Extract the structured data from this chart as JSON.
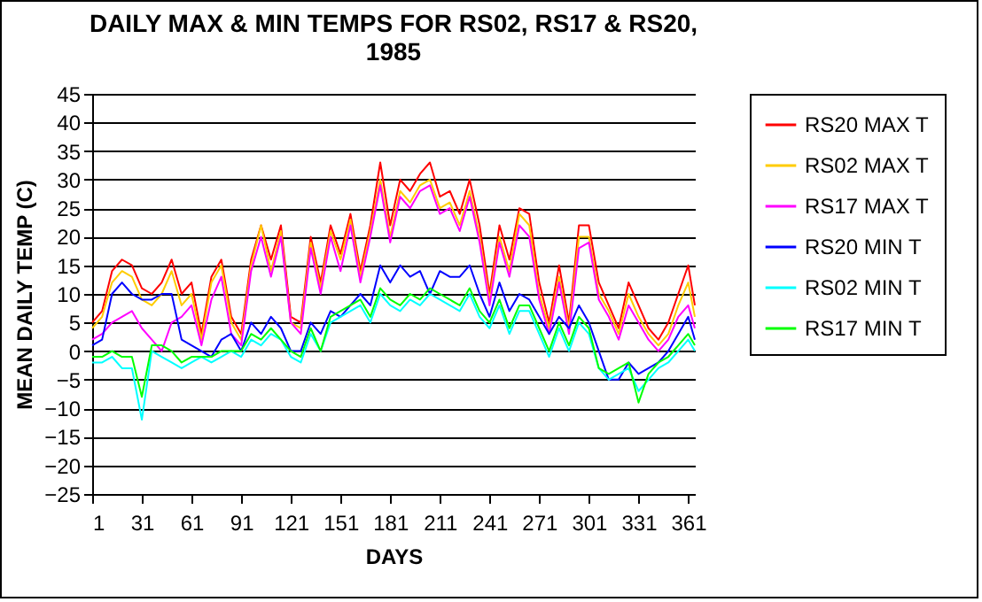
{
  "chart_data": {
    "type": "line",
    "title": "DAILY MAX & MIN TEMPS FOR RS02, RS17 & RS20,\n1985",
    "xlabel": "DAYS",
    "ylabel": "MEAN DAILY TEMP (C)",
    "x": [
      1,
      7,
      13,
      19,
      25,
      31,
      37,
      43,
      49,
      55,
      61,
      67,
      73,
      79,
      85,
      91,
      97,
      103,
      109,
      115,
      121,
      127,
      133,
      139,
      145,
      151,
      157,
      163,
      169,
      175,
      181,
      187,
      193,
      199,
      205,
      211,
      217,
      223,
      229,
      235,
      241,
      247,
      253,
      259,
      265,
      271,
      277,
      283,
      289,
      295,
      301,
      307,
      313,
      319,
      325,
      331,
      337,
      343,
      349,
      355,
      361,
      365
    ],
    "series": [
      {
        "name": "RS20 MAX T",
        "color": "#ff0000",
        "values": [
          5,
          7,
          14,
          16,
          15,
          11,
          10,
          12,
          16,
          10,
          12,
          3,
          13,
          16,
          6,
          3,
          16,
          22,
          16,
          22,
          6,
          5,
          20,
          12,
          22,
          17,
          24,
          14,
          22,
          33,
          22,
          30,
          28,
          31,
          33,
          27,
          28,
          24,
          30,
          22,
          10,
          22,
          16,
          25,
          24,
          12,
          5,
          15,
          5,
          22,
          22,
          12,
          8,
          4,
          12,
          8,
          4,
          2,
          5,
          10,
          15,
          8
        ]
      },
      {
        "name": "RS02 MAX T",
        "color": "#ffcc00",
        "values": [
          4,
          6,
          12,
          14,
          13,
          9,
          8,
          10,
          14,
          8,
          10,
          2,
          12,
          15,
          5,
          2,
          15,
          22,
          14,
          21,
          5,
          4,
          19,
          11,
          21,
          16,
          23,
          13,
          21,
          30,
          20,
          28,
          26,
          29,
          30,
          25,
          26,
          22,
          28,
          20,
          9,
          20,
          14,
          24,
          22,
          10,
          4,
          13,
          4,
          20,
          20,
          10,
          7,
          3,
          10,
          6,
          3,
          1,
          3,
          8,
          12,
          6
        ]
      },
      {
        "name": "RS17 MAX T",
        "color": "#ff00ff",
        "values": [
          2,
          3,
          5,
          6,
          7,
          4,
          2,
          0,
          5,
          6,
          8,
          1,
          9,
          13,
          3,
          1,
          14,
          20,
          13,
          20,
          5,
          3,
          18,
          10,
          20,
          14,
          22,
          12,
          20,
          29,
          19,
          27,
          25,
          28,
          29,
          24,
          25,
          21,
          27,
          19,
          8,
          19,
          13,
          22,
          20,
          9,
          3,
          12,
          3,
          18,
          19,
          9,
          6,
          2,
          8,
          5,
          2,
          0,
          2,
          6,
          8,
          4
        ]
      },
      {
        "name": "RS20 MIN T",
        "color": "#0000ff",
        "values": [
          1,
          2,
          10,
          12,
          10,
          9,
          9,
          10,
          10,
          2,
          1,
          0,
          -1,
          2,
          3,
          0,
          5,
          3,
          6,
          4,
          0,
          0,
          5,
          3,
          7,
          6,
          8,
          10,
          8,
          15,
          12,
          15,
          13,
          14,
          10,
          14,
          13,
          13,
          15,
          10,
          6,
          12,
          7,
          10,
          9,
          6,
          3,
          6,
          4,
          8,
          5,
          0,
          -5,
          -5,
          -2,
          -4,
          -3,
          -2,
          0,
          3,
          6,
          2
        ]
      },
      {
        "name": "RS02 MIN T",
        "color": "#00ffff",
        "values": [
          -2,
          -2,
          -1,
          -3,
          -3,
          -12,
          0,
          -1,
          -2,
          -3,
          -2,
          -1,
          -2,
          -1,
          0,
          -1,
          2,
          1,
          3,
          2,
          -1,
          -2,
          3,
          0,
          5,
          6,
          7,
          8,
          5,
          10,
          8,
          7,
          9,
          8,
          10,
          9,
          8,
          7,
          10,
          6,
          4,
          8,
          3,
          7,
          7,
          3,
          -1,
          4,
          0,
          5,
          3,
          -3,
          -5,
          -4,
          -3,
          -7,
          -5,
          -3,
          -2,
          0,
          2,
          0
        ]
      },
      {
        "name": "RS17 MIN T",
        "color": "#00ff00",
        "values": [
          -1,
          -1,
          0,
          -1,
          -1,
          -8,
          1,
          1,
          0,
          -2,
          -1,
          -1,
          -1,
          0,
          0,
          0,
          3,
          2,
          4,
          2,
          0,
          -1,
          4,
          0,
          6,
          7,
          8,
          9,
          6,
          11,
          9,
          8,
          10,
          9,
          11,
          10,
          9,
          8,
          11,
          7,
          5,
          9,
          4,
          8,
          8,
          4,
          0,
          5,
          1,
          6,
          4,
          -3,
          -4,
          -3,
          -2,
          -9,
          -4,
          -2,
          -1,
          1,
          3,
          1
        ]
      }
    ],
    "xlim": [
      1,
      365
    ],
    "xticks": [
      1,
      31,
      61,
      91,
      121,
      151,
      181,
      211,
      241,
      271,
      301,
      331,
      361
    ],
    "ylim": [
      -25,
      45
    ],
    "yticks": [
      -25,
      -20,
      -15,
      -10,
      -5,
      0,
      5,
      10,
      15,
      20,
      25,
      30,
      35,
      40,
      45
    ],
    "grid": "y",
    "legend": "right",
    "marker": "none",
    "line_style": "solid"
  }
}
